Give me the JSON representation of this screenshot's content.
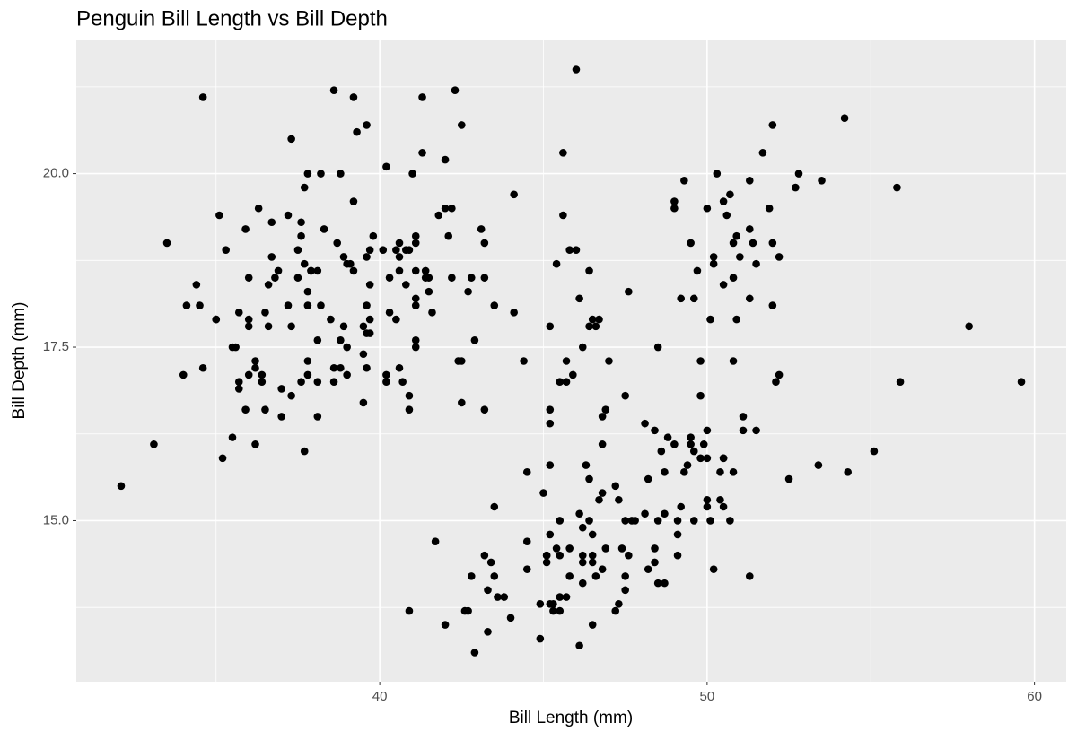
{
  "chart_data": {
    "type": "scatter",
    "title": "Penguin Bill Length vs Bill Depth",
    "x_label": "Bill Length (mm)",
    "y_label": "Bill Depth (mm)",
    "color": "#000000",
    "grid": true,
    "xlim": [
      30.73,
      60.97
    ],
    "ylim": [
      12.68,
      21.92
    ],
    "xticks": [
      40,
      50,
      60
    ],
    "yticks": [
      {
        "value": 15,
        "label": "15.0"
      },
      {
        "value": 17.5,
        "label": "17.5"
      },
      {
        "value": 20,
        "label": "20.0"
      }
    ],
    "x": [
      39.1,
      39.5,
      40.3,
      36.7,
      39.3,
      38.9,
      39.2,
      34.1,
      42,
      37.8,
      37.8,
      41.1,
      38.6,
      34.6,
      36.6,
      38.7,
      42.5,
      34.4,
      46,
      37.8,
      37.7,
      35.9,
      38.2,
      38.8,
      35.3,
      40.6,
      40.5,
      37.9,
      40.5,
      39.5,
      37.2,
      39.5,
      40.9,
      36.4,
      39.2,
      38.8,
      42.2,
      37.6,
      39.8,
      36.5,
      40.8,
      36,
      44.1,
      37,
      39.6,
      41.1,
      37.5,
      36,
      42.3,
      39.6,
      40.1,
      35,
      42,
      34.5,
      41.4,
      39,
      40.6,
      36.5,
      37.6,
      35.7,
      41.3,
      37.6,
      41.1,
      36.4,
      41.6,
      35.5,
      41.1,
      35.9,
      41.8,
      33.5,
      39.7,
      39.6,
      45.8,
      35.5,
      42.8,
      40.9,
      37.2,
      36.2,
      42.1,
      34.6,
      42.9,
      36.7,
      35.1,
      37.3,
      41.3,
      36.3,
      36.9,
      38.3,
      38.9,
      35.7,
      41.1,
      34,
      39.6,
      36.2,
      40.8,
      38.1,
      40.3,
      33.1,
      43.2,
      35,
      41,
      37.7,
      37.8,
      37.9,
      39.7,
      38.6,
      38.2,
      38.1,
      43.2,
      38.1,
      45.6,
      39.7,
      42.2,
      39.6,
      42.7,
      38.6,
      37.3,
      35.7,
      41.1,
      36.2,
      37.7,
      40.2,
      41.4,
      35.2,
      40.6,
      38.8,
      41.5,
      39,
      44.1,
      38.5,
      43.1,
      36.8,
      37.5,
      38.1,
      41.1,
      35.6,
      40.2,
      37,
      39.7,
      40.2,
      40.6,
      32.1,
      40.7,
      37.3,
      39,
      39.2,
      36.6,
      36,
      37.8,
      36,
      41.5,
      46.1,
      50,
      48.7,
      50,
      47.6,
      46.5,
      45.4,
      46.7,
      43.3,
      46.8,
      40.9,
      49,
      45.5,
      48.4,
      45.8,
      49.3,
      42,
      49.2,
      46.2,
      48.7,
      50.2,
      45.1,
      46.5,
      46.3,
      42.9,
      46.1,
      44.5,
      47.8,
      48.2,
      50,
      47.3,
      42.8,
      45.1,
      59.6,
      49.1,
      48.4,
      42.6,
      44.4,
      44,
      48.7,
      42.7,
      49.6,
      45.3,
      49.6,
      50.5,
      43.6,
      45.5,
      50.5,
      44.9,
      45.2,
      46.6,
      48.5,
      45.1,
      50.1,
      46.5,
      45,
      43.8,
      45.5,
      43.2,
      50.4,
      45.3,
      46.2,
      45.7,
      54.3,
      45.8,
      49.8,
      46.2,
      49.5,
      43.5,
      50.7,
      47.7,
      46.4,
      48.2,
      46.5,
      46.4,
      48.6,
      47.5,
      51.1,
      45.2,
      45.2,
      49.1,
      52.5,
      47.4,
      50,
      44.9,
      50.8,
      43.4,
      51.3,
      47.5,
      52.1,
      47.5,
      52.2,
      45.5,
      49.5,
      44.5,
      50.8,
      49.4,
      46.9,
      48.4,
      51.1,
      48.5,
      55.9,
      47.2,
      49.1,
      47.3,
      46.8,
      41.7,
      53.4,
      43.3,
      48.1,
      50.5,
      49.8,
      43.5,
      51.5,
      46.2,
      55.1,
      44.5,
      48.8,
      47.2,
      46.8,
      50.4,
      45.2,
      49.9,
      46.5,
      50,
      51.3,
      45.4,
      52.7,
      45.2,
      46.1,
      51.3,
      46,
      51.3,
      46.6,
      51.7,
      47,
      52,
      45.9,
      50.5,
      50.3,
      58,
      46.4,
      49.2,
      42.4,
      48.5,
      43.2,
      50.6,
      46.7,
      52,
      50.5,
      49.5,
      46.4,
      52.8,
      40.9,
      54.2,
      42.5,
      51,
      49.7,
      47.5,
      47.6,
      52,
      46.9,
      53.5,
      49,
      46.2,
      50.9,
      45.5,
      50.9,
      50.8,
      50.1,
      49,
      51.5,
      49.8,
      48.1,
      51.4,
      45.7,
      50.7,
      42.5,
      52.2,
      45.2,
      49.3,
      50.2,
      45.6,
      51.9,
      46.8,
      45.7,
      55.8,
      43.5,
      49.6,
      50.8,
      50.2
    ],
    "y": [
      18.7,
      17.4,
      18,
      19.3,
      20.6,
      17.8,
      19.6,
      18.1,
      20.2,
      17.1,
      17.3,
      17.6,
      21.2,
      21.1,
      17.8,
      19,
      20.7,
      18.4,
      21.5,
      18.3,
      18.7,
      19.2,
      18.1,
      17.2,
      18.9,
      18.6,
      17.9,
      18.6,
      18.9,
      16.7,
      18.1,
      17.8,
      18.9,
      17,
      21.1,
      20,
      18.5,
      19.3,
      19.1,
      18,
      18.4,
      18.5,
      19.7,
      16.9,
      18.8,
      19,
      18.9,
      17.9,
      21.2,
      17.7,
      18.9,
      17.9,
      19.5,
      18.1,
      18.6,
      17.5,
      18.8,
      16.6,
      19.1,
      16.9,
      21.1,
      17,
      18.2,
      17.1,
      18,
      16.2,
      19.1,
      16.6,
      19.4,
      19,
      18.4,
      17.2,
      18.9,
      17.5,
      18.5,
      16.8,
      19.4,
      16.1,
      19.1,
      17.2,
      17.6,
      18.8,
      19.4,
      17.8,
      20.3,
      19.5,
      18.6,
      19.2,
      18.8,
      18,
      18.1,
      17.1,
      18.1,
      17.3,
      18.9,
      18.6,
      18.5,
      16.1,
      18.5,
      17.9,
      20,
      16,
      20,
      18.6,
      18.9,
      17.2,
      20,
      17,
      19,
      16.5,
      20.3,
      17.7,
      19.5,
      20.7,
      18.3,
      17,
      20.5,
      17,
      18.6,
      17.2,
      19.8,
      17,
      18.5,
      15.9,
      19,
      17.6,
      18.3,
      17.1,
      18,
      17.9,
      19.2,
      18.5,
      18.5,
      17.6,
      17.5,
      17.5,
      20.1,
      16.5,
      17.9,
      17.1,
      17.2,
      15.5,
      17,
      16.8,
      18.7,
      18.6,
      18.4,
      17.8,
      18.1,
      17.1,
      18.5,
      13.2,
      16.3,
      14.1,
      15.2,
      14.5,
      13.5,
      14.6,
      15.3,
      13.4,
      15.4,
      13.7,
      16.1,
      13.7,
      14.6,
      14.6,
      15.7,
      13.5,
      15.2,
      14.5,
      15.1,
      14.3,
      14.5,
      14.5,
      15.8,
      13.1,
      15.1,
      14.3,
      15,
      14.3,
      15.3,
      15.3,
      14.2,
      14.5,
      17,
      14.8,
      16.3,
      13.7,
      17.3,
      13.6,
      15.7,
      13.7,
      16,
      13.7,
      15,
      15.9,
      13.9,
      13.9,
      15.9,
      13.3,
      15.8,
      14.2,
      14.1,
      14.4,
      15,
      14.4,
      15.4,
      13.9,
      15,
      14.5,
      15.3,
      13.8,
      14.9,
      13.9,
      15.7,
      14.2,
      16.8,
      14.4,
      16.2,
      14.2,
      15,
      15,
      15.6,
      15.6,
      14.8,
      15,
      16,
      14.2,
      16.3,
      13.8,
      16.4,
      14.5,
      15.6,
      14.6,
      15.9,
      13.8,
      17.3,
      14.4,
      14.2,
      14,
      17,
      15,
      17.1,
      14.5,
      16.1,
      14.7,
      15.7,
      15.8,
      14.6,
      14.4,
      16.5,
      15,
      17,
      15.5,
      15,
      13.8,
      16.1,
      14.7,
      15.8,
      14,
      15.1,
      15.2,
      15.9,
      15.2,
      16.3,
      14.1,
      16,
      15.7,
      16.2,
      13.7,
      14.3,
      15.7,
      14.8,
      16.1,
      17.9,
      19.5,
      19.2,
      18.7,
      19.8,
      17.8,
      18.2,
      18.2,
      18.9,
      19.9,
      17.8,
      20.3,
      17.3,
      18.1,
      17.1,
      19.6,
      20,
      17.8,
      18.6,
      18.2,
      17.3,
      17.5,
      16.6,
      19.4,
      17.9,
      19,
      18.4,
      19,
      17.8,
      20,
      16.6,
      20.8,
      16.7,
      18.8,
      18.6,
      16.8,
      18.3,
      20.7,
      16.6,
      19.9,
      19.5,
      17.5,
      19.1,
      17,
      17.9,
      18.5,
      17.9,
      19.6,
      18.7,
      17.3,
      16.4,
      19,
      17.3,
      19.7,
      17.3,
      18.8,
      16.6,
      19.9,
      18.8,
      19.4,
      19.5,
      16.5,
      17,
      19.8,
      18.1,
      18.2,
      19,
      18.7
    ]
  }
}
